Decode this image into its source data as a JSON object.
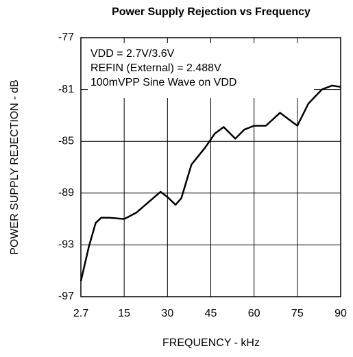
{
  "chart_data": {
    "type": "line",
    "title": "Power Supply Rejection vs Frequency",
    "xlabel": "FREQUENCY - kHz",
    "ylabel": "POWER SUPPLY REJECTION - dB",
    "annotations": [
      "VDD = 2.7V/3.6V",
      "REFIN (External) = 2.488V",
      "100mVPP Sine Wave on VDD"
    ],
    "xlim": [
      2.7,
      90
    ],
    "xticks": [
      2.7,
      15,
      30,
      45,
      60,
      75,
      90
    ],
    "ylim": [
      -97,
      -77
    ],
    "yticks": [
      -77,
      -81,
      -85,
      -89,
      -93,
      -97
    ],
    "grid": true,
    "series": [
      {
        "color": "#000000",
        "x": [
          2.7,
          5.0,
          6.9,
          8.5,
          10.8,
          15,
          19.3,
          22.9,
          27.6,
          30,
          32.8,
          34.8,
          38.3,
          43,
          46.4,
          49.5,
          53.5,
          56.6,
          60,
          64.1,
          69,
          72,
          75,
          78.8,
          83.5,
          87,
          90
        ],
        "values": [
          -95.8,
          -93.1,
          -91.3,
          -90.9,
          -90.9,
          -91.0,
          -90.5,
          -89.8,
          -88.9,
          -89.3,
          -89.9,
          -89.4,
          -86.8,
          -85.5,
          -84.4,
          -83.9,
          -84.8,
          -84.1,
          -83.8,
          -83.8,
          -82.8,
          -83.3,
          -83.8,
          -82.1,
          -81.0,
          -80.7,
          -80.8
        ]
      }
    ]
  }
}
